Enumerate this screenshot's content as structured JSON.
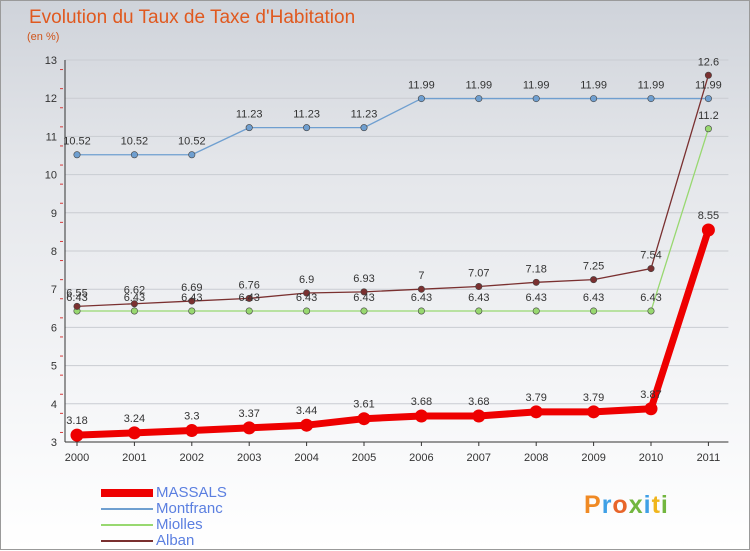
{
  "title": "Evolution du Taux de Taxe d'Habitation",
  "subtitle": "(en %)",
  "logo": "Proxiti",
  "chart_data": {
    "type": "line",
    "title": "Evolution du Taux de Taxe d'Habitation",
    "ylabel": "(en %)",
    "x": [
      "2000",
      "2001",
      "2002",
      "2003",
      "2004",
      "2005",
      "2006",
      "2007",
      "2008",
      "2009",
      "2010",
      "2011"
    ],
    "yticks": [
      3,
      4,
      5,
      6,
      7,
      8,
      9,
      10,
      11,
      12,
      13
    ],
    "ylim": [
      3,
      13
    ],
    "legend_position": "bottom-left",
    "series": [
      {
        "name": "MASSALS",
        "color": "#ee0000",
        "values": [
          3.18,
          3.24,
          3.3,
          3.37,
          3.44,
          3.61,
          3.68,
          3.68,
          3.79,
          3.79,
          3.87,
          8.55
        ],
        "labels": [
          "3.18",
          "3.24",
          "3.3",
          "3.37",
          "3.44",
          "3.61",
          "3.68",
          "3.68",
          "3.79",
          "3.79",
          "3.87",
          "8.55"
        ]
      },
      {
        "name": "Montfranc",
        "color": "#6f9fd0",
        "values": [
          10.52,
          10.52,
          10.52,
          11.23,
          11.23,
          11.23,
          11.99,
          11.99,
          11.99,
          11.99,
          11.99,
          11.99
        ],
        "labels": [
          "10.52",
          "10.52",
          "10.52",
          "11.23",
          "11.23",
          "11.23",
          "11.99",
          "11.99",
          "11.99",
          "11.99",
          "11.99",
          "11.99"
        ]
      },
      {
        "name": "Miolles",
        "color": "#98d870",
        "values": [
          6.43,
          6.43,
          6.43,
          6.43,
          6.43,
          6.43,
          6.43,
          6.43,
          6.43,
          6.43,
          6.43,
          11.2
        ],
        "labels": [
          "6.43",
          "6.43",
          "6.43",
          "6.43",
          "6.43",
          "6.43",
          "6.43",
          "6.43",
          "6.43",
          "6.43",
          "6.43",
          "11.2"
        ]
      },
      {
        "name": "Alban",
        "color": "#7a3030",
        "values": [
          6.55,
          6.62,
          6.69,
          6.76,
          6.9,
          6.93,
          7,
          7.07,
          7.18,
          7.25,
          7.54,
          12.6
        ],
        "labels": [
          "6.55",
          "6.62",
          "6.69",
          "6.76",
          "6.9",
          "6.93",
          "7",
          "7.07",
          "7.18",
          "7.25",
          "7.54",
          "12.6"
        ]
      }
    ]
  }
}
